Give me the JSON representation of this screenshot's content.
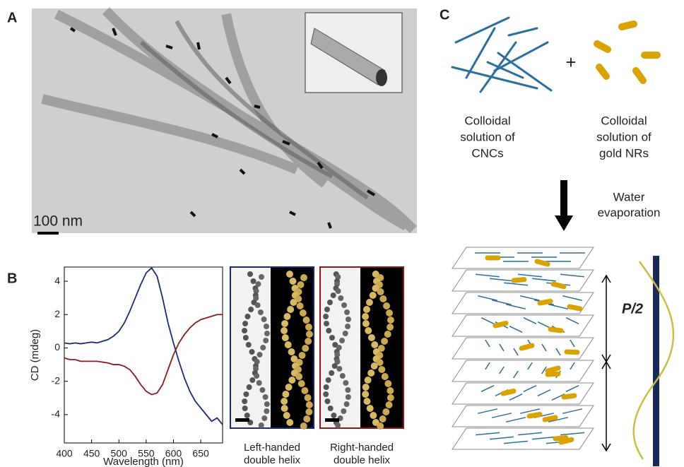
{
  "panels": {
    "a": {
      "label": "A",
      "scale_bar": "100 nm"
    },
    "b": {
      "label": "B",
      "left_caption": [
        "Left-handed",
        "double helix"
      ],
      "right_caption": [
        "Right-handed",
        "double helix"
      ]
    },
    "c": {
      "label": "C",
      "plus": "+",
      "cnc_caption": [
        "Colloidal",
        "solution of",
        "CNCs"
      ],
      "nr_caption": [
        "Colloidal",
        "solution of",
        "gold NRs"
      ],
      "step": [
        "Water",
        "evaporation"
      ],
      "pitch": "P/2"
    }
  },
  "chart_data": {
    "type": "line",
    "xlabel": "Wavelength (nm)",
    "ylabel": "CD (mdeg)",
    "x": [
      400,
      410,
      420,
      430,
      440,
      450,
      460,
      470,
      480,
      490,
      500,
      510,
      520,
      530,
      540,
      550,
      560,
      570,
      580,
      590,
      600,
      610,
      620,
      630,
      640,
      650,
      660,
      670,
      680,
      690
    ],
    "series": [
      {
        "color": "#1a2a7a",
        "values": [
          0.3,
          0.25,
          0.3,
          0.25,
          0.3,
          0.35,
          0.3,
          0.4,
          0.5,
          0.7,
          1.0,
          1.5,
          2.2,
          3.0,
          3.8,
          4.5,
          4.8,
          4.3,
          3.0,
          1.5,
          0.3,
          -0.8,
          -1.8,
          -2.6,
          -3.2,
          -3.6,
          -4.0,
          -4.4,
          -4.2,
          -4.6
        ]
      },
      {
        "color": "#8b1a1a",
        "values": [
          -0.6,
          -0.7,
          -0.7,
          -0.8,
          -0.8,
          -0.8,
          -0.8,
          -0.85,
          -0.9,
          -1.0,
          -1.0,
          -1.1,
          -1.3,
          -1.7,
          -2.2,
          -2.6,
          -2.8,
          -2.7,
          -2.2,
          -1.3,
          -0.4,
          0.3,
          0.8,
          1.2,
          1.5,
          1.7,
          1.8,
          1.9,
          2.0,
          2.0
        ]
      }
    ],
    "xlim": [
      400,
      690
    ],
    "xticks": [
      400,
      450,
      500,
      550,
      600,
      650
    ],
    "ylim": [
      -5.7,
      4.85
    ],
    "yticks": [
      -4,
      -2,
      0,
      2,
      4
    ]
  }
}
